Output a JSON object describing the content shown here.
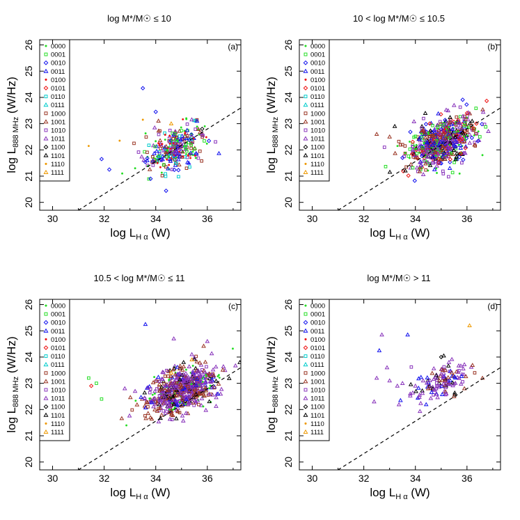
{
  "chart_data": {
    "type": "scatter",
    "shared": {
      "xlabel": {
        "main": "log L",
        "sub": "H α",
        "unit": " (W)"
      },
      "ylabel": {
        "main": "log L",
        "sub": "888 MHz",
        "unit": " (W/Hz)"
      },
      "xlim": [
        29.5,
        37.3
      ],
      "ylim": [
        19.7,
        26.2
      ],
      "xticks": [
        30,
        32,
        34,
        36
      ],
      "yticks": [
        20,
        21,
        22,
        23,
        24,
        25,
        26
      ],
      "dashed_line": {
        "x": [
          31.0,
          37.3
        ],
        "y": [
          19.7,
          23.6
        ]
      },
      "legend": {
        "position": "top-left",
        "entries": [
          {
            "code": "0000",
            "marker": "dot",
            "color": "#22dd22"
          },
          {
            "code": "0001",
            "marker": "square",
            "color": "#22dd22"
          },
          {
            "code": "0010",
            "marker": "diamond",
            "color": "#1111ee"
          },
          {
            "code": "0011",
            "marker": "triangle",
            "color": "#1111ee"
          },
          {
            "code": "0100",
            "marker": "dot",
            "color": "#ee1111"
          },
          {
            "code": "0101",
            "marker": "diamond",
            "color": "#ee1111"
          },
          {
            "code": "0110",
            "marker": "square",
            "color": "#00cccc"
          },
          {
            "code": "0111",
            "marker": "triangle",
            "color": "#00cccc"
          },
          {
            "code": "1000",
            "marker": "square",
            "color": "#993322"
          },
          {
            "code": "1001",
            "marker": "triangle",
            "color": "#993322"
          },
          {
            "code": "1010",
            "marker": "square",
            "color": "#8833bb"
          },
          {
            "code": "1011",
            "marker": "triangle",
            "color": "#8833bb"
          },
          {
            "code": "1100",
            "marker": "diamond",
            "color": "#000000"
          },
          {
            "code": "1101",
            "marker": "triangle",
            "color": "#000000"
          },
          {
            "code": "1110",
            "marker": "dot",
            "color": "#ee9900"
          },
          {
            "code": "1111",
            "marker": "triangle",
            "color": "#ee9900"
          }
        ]
      }
    },
    "panels": [
      {
        "id": "a",
        "title": "log M*/M☉ ≤ 10",
        "label": "(a)",
        "cloud": {
          "cx": 34.8,
          "cy": 22.1,
          "sx": 0.55,
          "sy": 0.45,
          "n": 300,
          "mix": [
            "0000",
            "0010",
            "0011",
            "0001",
            "1000",
            "1001",
            "0100",
            "1010",
            "1011",
            "0110"
          ]
        },
        "points": [
          {
            "code": "1110",
            "x": 31.4,
            "y": 22.15
          },
          {
            "code": "1110",
            "x": 32.6,
            "y": 22.35
          },
          {
            "code": "1110",
            "x": 33.5,
            "y": 23.15
          },
          {
            "code": "0010",
            "x": 33.5,
            "y": 24.35
          },
          {
            "code": "0010",
            "x": 32.2,
            "y": 21.25
          },
          {
            "code": "0010",
            "x": 31.9,
            "y": 21.65
          },
          {
            "code": "0000",
            "x": 32.7,
            "y": 21.1
          },
          {
            "code": "0000",
            "x": 33.2,
            "y": 21.3
          },
          {
            "code": "0010",
            "x": 34.0,
            "y": 23.45
          },
          {
            "code": "1111",
            "x": 34.6,
            "y": 23.0
          },
          {
            "code": "0011",
            "x": 35.6,
            "y": 23.1
          },
          {
            "code": "1100",
            "x": 35.8,
            "y": 22.8
          },
          {
            "code": "0010",
            "x": 33.8,
            "y": 20.9
          },
          {
            "code": "0000",
            "x": 35.9,
            "y": 22.9
          }
        ]
      },
      {
        "id": "b",
        "title": "10 < log M*/M☉ ≤ 10.5",
        "label": "(b)",
        "cloud": {
          "cx": 35.0,
          "cy": 22.3,
          "sx": 0.65,
          "sy": 0.45,
          "n": 650,
          "mix": [
            "1011",
            "1011",
            "1010",
            "1001",
            "1000",
            "0010",
            "0011",
            "1101",
            "0000",
            "0001",
            "0101"
          ]
        },
        "points": [
          {
            "code": "1001",
            "x": 32.5,
            "y": 22.6
          },
          {
            "code": "1010",
            "x": 32.8,
            "y": 22.1
          },
          {
            "code": "1001",
            "x": 33.0,
            "y": 22.5
          },
          {
            "code": "1101",
            "x": 33.2,
            "y": 22.9
          },
          {
            "code": "1000",
            "x": 33.5,
            "y": 22.2
          },
          {
            "code": "0101",
            "x": 36.0,
            "y": 23.4
          },
          {
            "code": "1101",
            "x": 36.2,
            "y": 23.1
          },
          {
            "code": "0000",
            "x": 36.6,
            "y": 21.8
          },
          {
            "code": "1011",
            "x": 35.5,
            "y": 23.7
          },
          {
            "code": "0001",
            "x": 36.5,
            "y": 22.5
          }
        ]
      },
      {
        "id": "c",
        "title": "10.5 < log M*/M☉ ≤ 11",
        "label": "(c)",
        "cloud": {
          "cx": 35.0,
          "cy": 22.75,
          "sx": 0.7,
          "sy": 0.42,
          "n": 650,
          "mix": [
            "1011",
            "1011",
            "1011",
            "1001",
            "1001",
            "1010",
            "1000",
            "1101",
            "0011",
            "0000"
          ]
        },
        "points": [
          {
            "code": "0011",
            "x": 33.6,
            "y": 25.25
          },
          {
            "code": "0001",
            "x": 31.4,
            "y": 23.2
          },
          {
            "code": "0001",
            "x": 31.7,
            "y": 23.0
          },
          {
            "code": "0101",
            "x": 31.5,
            "y": 22.9
          },
          {
            "code": "0001",
            "x": 31.9,
            "y": 22.4
          },
          {
            "code": "1011",
            "x": 34.7,
            "y": 24.7
          },
          {
            "code": "1011",
            "x": 36.0,
            "y": 24.6
          },
          {
            "code": "1011",
            "x": 35.4,
            "y": 24.1
          },
          {
            "code": "1111",
            "x": 35.4,
            "y": 23.9
          },
          {
            "code": "1111",
            "x": 34.6,
            "y": 23.4
          },
          {
            "code": "1011",
            "x": 32.8,
            "y": 22.8
          },
          {
            "code": "1011",
            "x": 33.2,
            "y": 22.7
          }
        ]
      },
      {
        "id": "d",
        "title": "log M*/M☉ > 11",
        "label": "(d)",
        "cloud": {
          "cx": 35.0,
          "cy": 23.0,
          "sx": 0.6,
          "sy": 0.3,
          "n": 120,
          "mix": [
            "1011",
            "1011",
            "1011",
            "1001",
            "1010",
            "1101",
            "0011"
          ]
        },
        "points": [
          {
            "code": "0011",
            "x": 32.6,
            "y": 24.25
          },
          {
            "code": "0011",
            "x": 33.7,
            "y": 24.85
          },
          {
            "code": "1011",
            "x": 32.7,
            "y": 24.85
          },
          {
            "code": "1011",
            "x": 32.9,
            "y": 23.6
          },
          {
            "code": "1011",
            "x": 32.4,
            "y": 22.3
          },
          {
            "code": "1011",
            "x": 32.5,
            "y": 23.2
          },
          {
            "code": "1011",
            "x": 33.0,
            "y": 23.1
          },
          {
            "code": "1011",
            "x": 33.3,
            "y": 22.9
          },
          {
            "code": "1011",
            "x": 33.5,
            "y": 23.0
          },
          {
            "code": "1011",
            "x": 33.8,
            "y": 22.6
          },
          {
            "code": "1011",
            "x": 34.0,
            "y": 22.9
          },
          {
            "code": "1011",
            "x": 34.3,
            "y": 23.1
          },
          {
            "code": "1111",
            "x": 36.1,
            "y": 25.2
          },
          {
            "code": "1101",
            "x": 35.1,
            "y": 24.05
          },
          {
            "code": "1100",
            "x": 35.0,
            "y": 24.0
          },
          {
            "code": "1011",
            "x": 35.3,
            "y": 23.8
          },
          {
            "code": "1001",
            "x": 36.6,
            "y": 23.2
          },
          {
            "code": "1000",
            "x": 36.3,
            "y": 23.4
          },
          {
            "code": "1001",
            "x": 35.5,
            "y": 22.5
          },
          {
            "code": "1001",
            "x": 35.9,
            "y": 22.8
          },
          {
            "code": "1011",
            "x": 34.8,
            "y": 22.8
          },
          {
            "code": "1011",
            "x": 35.2,
            "y": 22.6
          }
        ]
      }
    ]
  }
}
